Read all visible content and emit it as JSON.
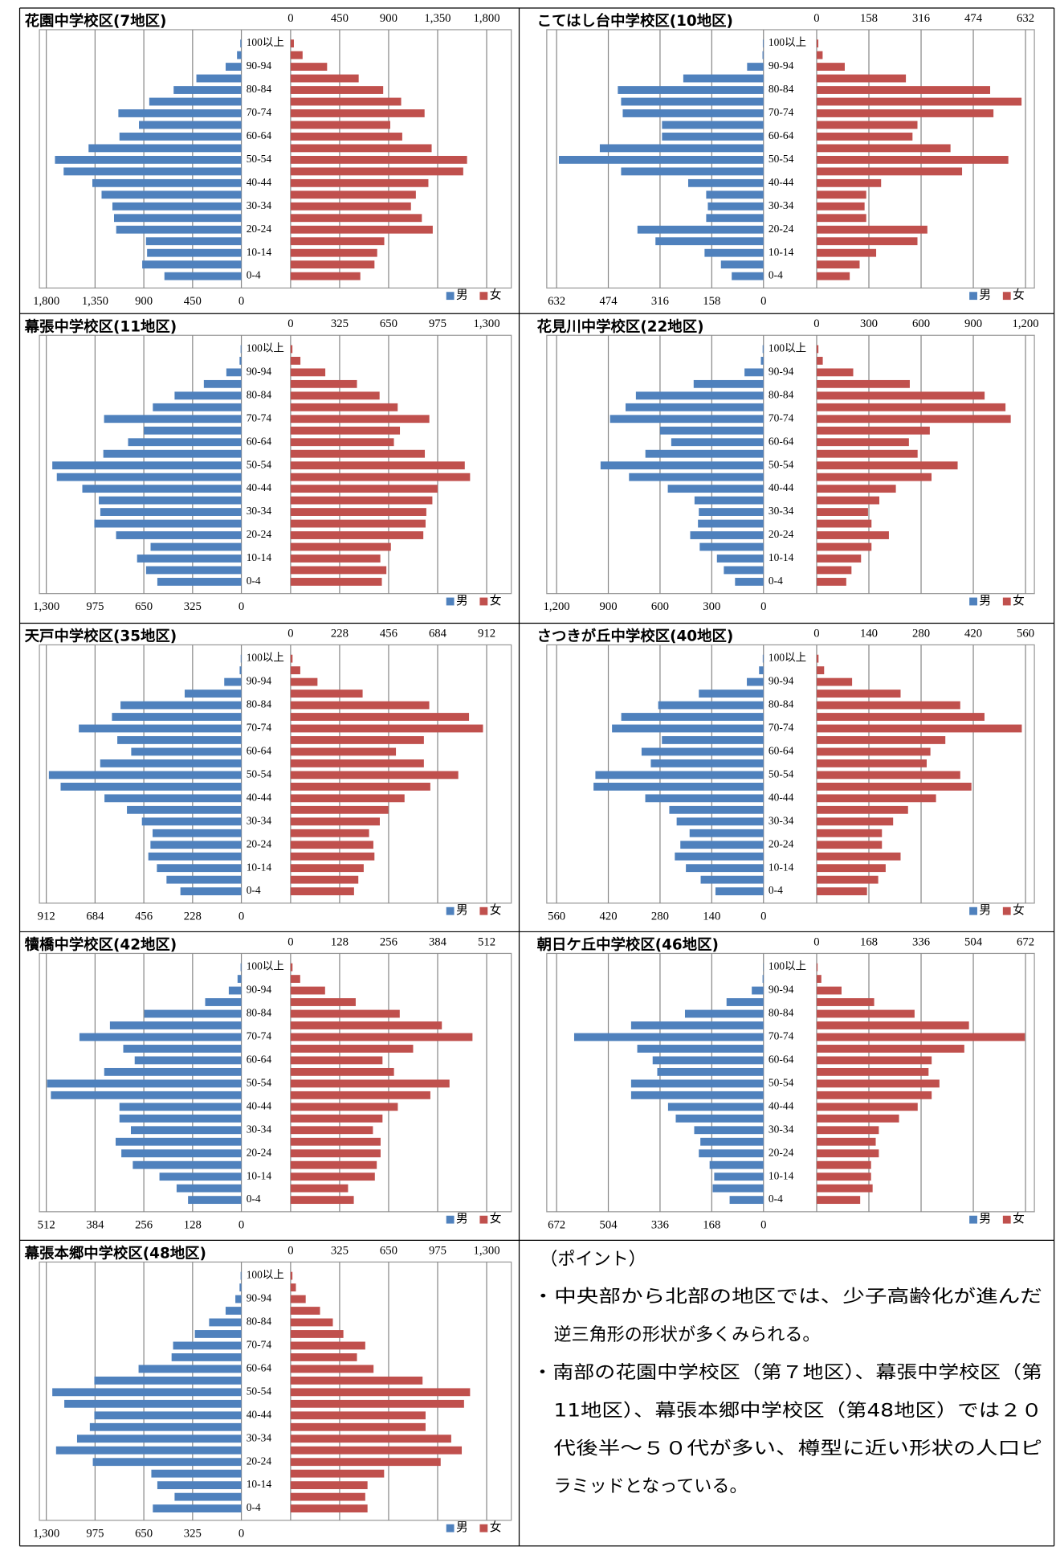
{
  "chart_data": [
    {
      "type": "pyramid",
      "title": "花園中学校区(7地区)",
      "categories": [
        "0-4",
        null,
        "10-14",
        null,
        "20-24",
        null,
        "30-34",
        null,
        "40-44",
        null,
        "50-54",
        null,
        "60-64",
        null,
        "70-74",
        null,
        "80-84",
        null,
        "90-94",
        null,
        "100以上"
      ],
      "series": [
        {
          "name": "男",
          "color": "#4f81bd",
          "axis": "x",
          "values": [
            710,
            915,
            870,
            880,
            1155,
            1175,
            1190,
            1290,
            1375,
            1640,
            1720,
            1410,
            1125,
            945,
            1135,
            850,
            625,
            415,
            145,
            40,
            10
          ]
        },
        {
          "name": "女",
          "color": "#c0504d",
          "axis": "x2",
          "values": [
            640,
            770,
            795,
            860,
            1305,
            1205,
            1105,
            1150,
            1265,
            1585,
            1620,
            1295,
            1025,
            915,
            1230,
            1015,
            850,
            625,
            335,
            110,
            30
          ]
        }
      ],
      "xlim": [
        0,
        1800
      ],
      "xticks": [
        {
          "value": 1800,
          "label": "1,800"
        },
        {
          "value": 1350,
          "label": "1,350"
        },
        900,
        450,
        0
      ],
      "x2lim": [
        0,
        1800
      ],
      "x2ticks": [
        0,
        450,
        900,
        {
          "value": 1350,
          "label": "1,350"
        },
        {
          "value": 1800,
          "label": "1,800"
        }
      ],
      "grid": true,
      "legend": "bottom-right"
    },
    {
      "type": "pyramid",
      "title": "こてはし台中学校区(10地区)",
      "categories": [
        "0-4",
        null,
        "10-14",
        null,
        "20-24",
        null,
        "30-34",
        null,
        "40-44",
        null,
        "50-54",
        null,
        "60-64",
        null,
        "70-74",
        null,
        "80-84",
        null,
        "90-94",
        null,
        "100以上"
      ],
      "series": [
        {
          "name": "男",
          "color": "#4f81bd",
          "axis": "x",
          "values": [
            97,
            130,
            180,
            330,
            385,
            175,
            170,
            175,
            230,
            435,
            625,
            500,
            310,
            310,
            430,
            435,
            445,
            245,
            50,
            3,
            2
          ]
        },
        {
          "name": "女",
          "color": "#c0504d",
          "axis": "x2",
          "values": [
            100,
            130,
            180,
            305,
            335,
            150,
            145,
            150,
            195,
            440,
            580,
            405,
            290,
            305,
            535,
            620,
            525,
            270,
            85,
            18,
            5
          ]
        }
      ],
      "xlim": [
        0,
        632
      ],
      "xticks": [
        632,
        474,
        316,
        158,
        0
      ],
      "x2lim": [
        0,
        632
      ],
      "x2ticks": [
        0,
        158,
        316,
        474,
        632
      ],
      "grid": true,
      "legend": "bottom-right"
    },
    {
      "type": "pyramid",
      "title": "幕張中学校区(11地区)",
      "categories": [
        "0-4",
        null,
        "10-14",
        null,
        "20-24",
        null,
        "30-34",
        null,
        "40-44",
        null,
        "50-54",
        null,
        "60-64",
        null,
        "70-74",
        null,
        "80-84",
        null,
        "90-94",
        null,
        "100以上"
      ],
      "series": [
        {
          "name": "男",
          "color": "#4f81bd",
          "axis": "x",
          "values": [
            560,
            635,
            695,
            605,
            835,
            980,
            940,
            950,
            1060,
            1230,
            1260,
            920,
            755,
            650,
            915,
            590,
            445,
            250,
            100,
            12,
            5
          ]
        },
        {
          "name": "女",
          "color": "#c0504d",
          "axis": "x2",
          "values": [
            605,
            635,
            595,
            665,
            880,
            895,
            900,
            940,
            975,
            1190,
            1155,
            890,
            685,
            725,
            920,
            710,
            590,
            440,
            230,
            65,
            12
          ]
        }
      ],
      "xlim": [
        0,
        1300
      ],
      "xticks": [
        {
          "value": 1300,
          "label": "1,300"
        },
        975,
        650,
        325,
        0
      ],
      "x2lim": [
        0,
        1300
      ],
      "x2ticks": [
        0,
        325,
        650,
        975,
        {
          "value": 1300,
          "label": "1,300"
        }
      ],
      "grid": true,
      "legend": "bottom-right"
    },
    {
      "type": "pyramid",
      "title": "花見川中学校区(22地区)",
      "categories": [
        "0-4",
        null,
        "10-14",
        null,
        "20-24",
        null,
        "30-34",
        null,
        "40-44",
        null,
        "50-54",
        null,
        "60-64",
        null,
        "70-74",
        null,
        "80-84",
        null,
        "90-94",
        null,
        "100以上"
      ],
      "series": [
        {
          "name": "男",
          "color": "#4f81bd",
          "axis": "x",
          "values": [
            165,
            230,
            270,
            370,
            425,
            380,
            375,
            400,
            555,
            780,
            945,
            685,
            535,
            600,
            890,
            800,
            740,
            405,
            110,
            15,
            5
          ]
        },
        {
          "name": "女",
          "color": "#c0504d",
          "axis": "x2",
          "values": [
            170,
            200,
            255,
            315,
            415,
            315,
            295,
            360,
            455,
            660,
            810,
            580,
            530,
            650,
            1115,
            1085,
            965,
            535,
            210,
            35,
            10
          ]
        }
      ],
      "xlim": [
        0,
        1200
      ],
      "xticks": [
        {
          "value": 1200,
          "label": "1,200"
        },
        900,
        600,
        300,
        0
      ],
      "x2lim": [
        0,
        1200
      ],
      "x2ticks": [
        0,
        300,
        600,
        900,
        {
          "value": 1200,
          "label": "1,200"
        }
      ],
      "grid": true,
      "legend": "bottom-right"
    },
    {
      "type": "pyramid",
      "title": "天戸中学校区(35地区)",
      "categories": [
        "0-4",
        null,
        "10-14",
        null,
        "20-24",
        null,
        "30-34",
        null,
        "40-44",
        null,
        "50-54",
        null,
        "60-64",
        null,
        "70-74",
        null,
        "80-84",
        null,
        "90-94",
        null,
        "100以上"
      ],
      "series": [
        {
          "name": "男",
          "color": "#4f81bd",
          "axis": "x",
          "values": [
            285,
            350,
            395,
            435,
            425,
            415,
            465,
            535,
            640,
            845,
            900,
            660,
            515,
            580,
            760,
            605,
            565,
            265,
            80,
            8,
            3
          ]
        },
        {
          "name": "女",
          "color": "#c0504d",
          "axis": "x2",
          "values": [
            295,
            315,
            340,
            390,
            385,
            365,
            415,
            455,
            530,
            650,
            780,
            620,
            490,
            620,
            895,
            830,
            645,
            335,
            125,
            45,
            9
          ]
        }
      ],
      "xlim": [
        0,
        912
      ],
      "xticks": [
        912,
        684,
        456,
        228,
        0
      ],
      "x2lim": [
        0,
        912
      ],
      "x2ticks": [
        0,
        228,
        456,
        684,
        912
      ],
      "grid": true,
      "legend": "bottom-right"
    },
    {
      "type": "pyramid",
      "title": "さつきが丘中学校区(40地区)",
      "categories": [
        "0-4",
        null,
        "10-14",
        null,
        "20-24",
        null,
        "30-34",
        null,
        "40-44",
        null,
        "50-54",
        null,
        "60-64",
        null,
        "70-74",
        null,
        "80-84",
        null,
        "90-94",
        null,
        "100以上"
      ],
      "series": [
        {
          "name": "男",
          "color": "#4f81bd",
          "axis": "x",
          "values": [
            130,
            170,
            210,
            240,
            225,
            200,
            235,
            255,
            320,
            460,
            455,
            305,
            330,
            275,
            410,
            385,
            285,
            175,
            45,
            12,
            2
          ]
        },
        {
          "name": "女",
          "color": "#c0504d",
          "axis": "x2",
          "values": [
            135,
            165,
            185,
            225,
            175,
            175,
            205,
            245,
            320,
            415,
            385,
            295,
            305,
            345,
            550,
            450,
            385,
            225,
            95,
            20,
            5
          ]
        }
      ],
      "xlim": [
        0,
        560
      ],
      "xticks": [
        560,
        420,
        280,
        140,
        0
      ],
      "x2lim": [
        0,
        560
      ],
      "x2ticks": [
        0,
        140,
        280,
        420,
        560
      ],
      "grid": true,
      "legend": "bottom-right"
    },
    {
      "type": "pyramid",
      "title": "犢橋中学校区(42地区)",
      "categories": [
        "0-4",
        null,
        "10-14",
        null,
        "20-24",
        null,
        "30-34",
        null,
        "40-44",
        null,
        "50-54",
        null,
        "60-64",
        null,
        "70-74",
        null,
        "80-84",
        null,
        "90-94",
        null,
        "100以上"
      ],
      "series": [
        {
          "name": "男",
          "color": "#4f81bd",
          "axis": "x",
          "values": [
            140,
            170,
            215,
            285,
            315,
            330,
            290,
            320,
            320,
            500,
            510,
            360,
            280,
            310,
            425,
            345,
            255,
            95,
            33,
            10,
            2
          ]
        },
        {
          "name": "女",
          "color": "#c0504d",
          "axis": "x2",
          "values": [
            165,
            150,
            220,
            225,
            235,
            235,
            215,
            240,
            280,
            365,
            415,
            270,
            240,
            320,
            475,
            395,
            285,
            170,
            90,
            25,
            5
          ]
        }
      ],
      "xlim": [
        0,
        512
      ],
      "xticks": [
        512,
        384,
        256,
        128,
        0
      ],
      "x2lim": [
        0,
        512
      ],
      "x2ticks": [
        0,
        128,
        256,
        384,
        512
      ],
      "grid": true,
      "legend": "bottom-right"
    },
    {
      "type": "pyramid",
      "title": "朝日ケ丘中学校区(46地区)",
      "categories": [
        "0-4",
        null,
        "10-14",
        null,
        "20-24",
        null,
        "30-34",
        null,
        "40-44",
        null,
        "50-54",
        null,
        "60-64",
        null,
        "70-74",
        null,
        "80-84",
        null,
        "90-94",
        null,
        "100以上"
      ],
      "series": [
        {
          "name": "男",
          "color": "#4f81bd",
          "axis": "x",
          "values": [
            110,
            165,
            160,
            175,
            210,
            205,
            225,
            285,
            310,
            430,
            430,
            345,
            360,
            410,
            615,
            430,
            255,
            120,
            38,
            3,
            1
          ]
        },
        {
          "name": "女",
          "color": "#c0504d",
          "axis": "x2",
          "values": [
            140,
            180,
            175,
            175,
            200,
            190,
            200,
            265,
            325,
            370,
            395,
            360,
            370,
            475,
            670,
            490,
            315,
            185,
            80,
            15,
            3
          ]
        }
      ],
      "xlim": [
        0,
        672
      ],
      "xticks": [
        672,
        504,
        336,
        168,
        0
      ],
      "x2lim": [
        0,
        672
      ],
      "x2ticks": [
        0,
        168,
        336,
        504,
        672
      ],
      "grid": true,
      "legend": "bottom-right"
    },
    {
      "type": "pyramid",
      "title": "幕張本郷中学校区(48地区)",
      "categories": [
        "0-4",
        null,
        "10-14",
        null,
        "20-24",
        null,
        "30-34",
        null,
        "40-44",
        null,
        "50-54",
        null,
        "60-64",
        null,
        "70-74",
        null,
        "80-84",
        null,
        "90-94",
        null,
        "100以上"
      ],
      "series": [
        {
          "name": "男",
          "color": "#4f81bd",
          "axis": "x",
          "values": [
            590,
            445,
            560,
            600,
            990,
            1235,
            1095,
            1010,
            980,
            1180,
            1260,
            980,
            685,
            465,
            455,
            310,
            215,
            105,
            40,
            12,
            5
          ]
        },
        {
          "name": "女",
          "color": "#c0504d",
          "axis": "x2",
          "values": [
            510,
            495,
            510,
            620,
            995,
            1135,
            1065,
            895,
            895,
            1150,
            1190,
            875,
            550,
            440,
            495,
            350,
            280,
            195,
            100,
            35,
            12
          ]
        }
      ],
      "xlim": [
        0,
        1300
      ],
      "xticks": [
        {
          "value": 1300,
          "label": "1,300"
        },
        975,
        650,
        325,
        0
      ],
      "x2lim": [
        0,
        1300
      ],
      "x2ticks": [
        0,
        325,
        650,
        975,
        {
          "value": 1300,
          "label": "1,300"
        }
      ],
      "grid": true,
      "legend": "bottom-right"
    }
  ],
  "points": {
    "heading": "（ポイント）",
    "items": [
      [
        "・中央部から北部の地区では、少子高齢化が進んだ",
        "逆三角形の形状が多くみられる。"
      ],
      [
        "・南部の花園中学校区（第７地区）、幕張中学校区（第",
        "11地区）、幕張本郷中学校区（第48地区）では２０",
        "代後半～５０代が多い、樽型に近い形状の人口ピ",
        "ラミッドとなっている。"
      ]
    ]
  }
}
